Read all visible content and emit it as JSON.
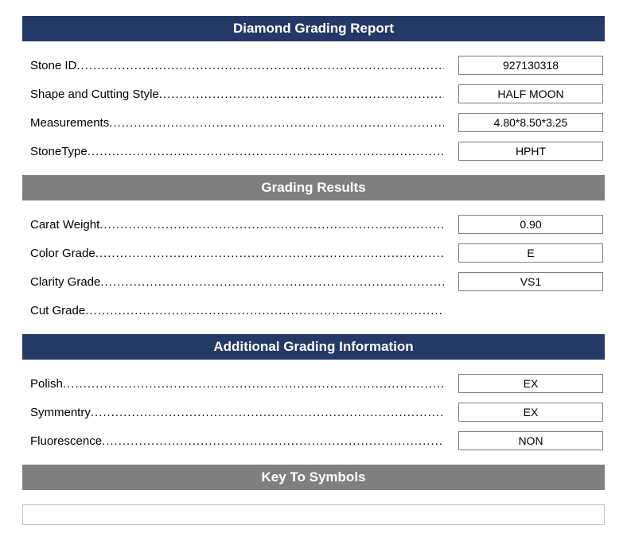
{
  "colors": {
    "navy": "#253967",
    "gray": "#7f7f7f",
    "border_gray": "#7f7f7f",
    "symbols_border": "#c0c0c0",
    "text": "#000000",
    "white": "#ffffff"
  },
  "sections": {
    "main": {
      "title": "Diamond Grading Report",
      "rows": [
        {
          "label": "Stone ID",
          "value": "927130318"
        },
        {
          "label": "Shape and Cutting Style",
          "value": "HALF MOON"
        },
        {
          "label": "Measurements",
          "value": "4.80*8.50*3.25"
        },
        {
          "label": "StoneType",
          "value": "HPHT"
        }
      ]
    },
    "grading": {
      "title": "Grading Results",
      "rows": [
        {
          "label": "Carat Weight",
          "value": "0.90"
        },
        {
          "label": "Color Grade",
          "value": "E"
        },
        {
          "label": "Clarity Grade",
          "value": "VS1"
        },
        {
          "label": "Cut Grade",
          "value": ""
        }
      ]
    },
    "additional": {
      "title": "Additional Grading Information",
      "rows": [
        {
          "label": "Polish",
          "value": "EX"
        },
        {
          "label": "Symmentry",
          "value": "EX"
        },
        {
          "label": "Fluorescence",
          "value": "NON"
        }
      ]
    },
    "symbols": {
      "title": "Key To Symbols"
    }
  }
}
